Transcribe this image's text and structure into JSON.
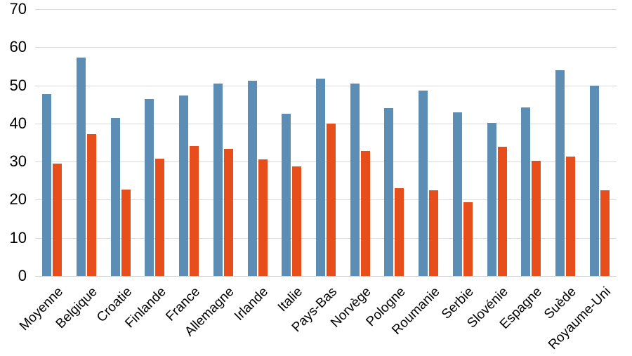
{
  "chart_data": {
    "type": "bar",
    "title": "",
    "xlabel": "",
    "ylabel": "",
    "ylim": [
      0,
      70
    ],
    "yticks": [
      0,
      10,
      20,
      30,
      40,
      50,
      60,
      70
    ],
    "grid": true,
    "legend": false,
    "categories": [
      "Moyenne",
      "Belgique",
      "Croatie",
      "Finlande",
      "France",
      "Allemagne",
      "Irlande",
      "Italie",
      "Pays-Bas",
      "Norvège",
      "Pologne",
      "Roumanie",
      "Serbie",
      "Slovénie",
      "Espagne",
      "Suède",
      "Royaume-Uni"
    ],
    "series": [
      {
        "name": "",
        "color": "#5b8db5",
        "values": [
          47.7,
          57.2,
          41.5,
          46.4,
          47.4,
          50.4,
          51.3,
          42.5,
          51.7,
          50.4,
          44.0,
          48.6,
          43.0,
          40.1,
          44.2,
          54.0,
          50.0
        ]
      },
      {
        "name": "",
        "color": "#e84e1b",
        "values": [
          29.5,
          37.2,
          22.6,
          30.8,
          34.1,
          33.3,
          30.6,
          28.7,
          40.0,
          32.7,
          23.1,
          22.5,
          19.4,
          33.9,
          30.2,
          31.4,
          22.5
        ]
      }
    ],
    "colors": {
      "gridline": "#d9d9d9",
      "axis_text": "#000000",
      "background": "#ffffff"
    }
  }
}
